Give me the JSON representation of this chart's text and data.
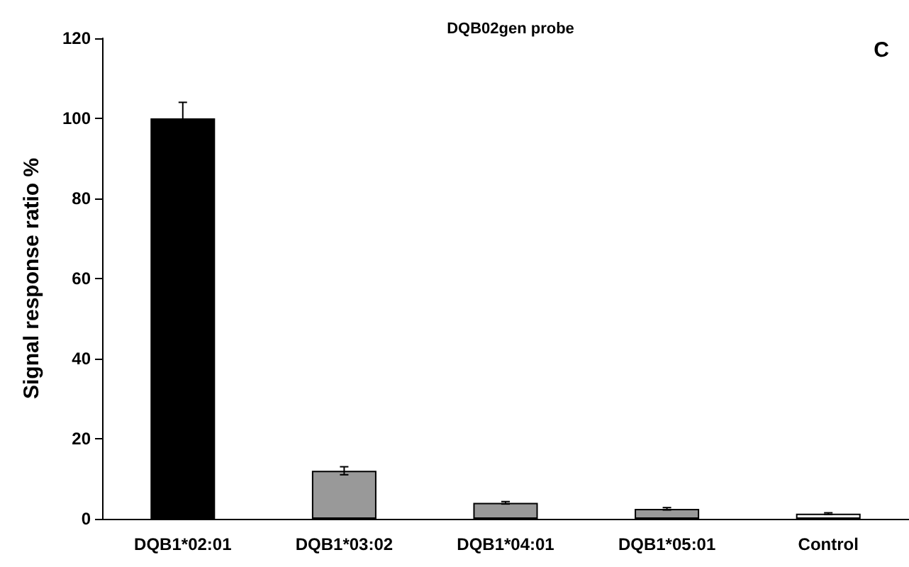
{
  "chart_data": {
    "type": "bar",
    "title": "DQB02gen probe",
    "ylabel": "Signal response ratio %",
    "categories": [
      "DQB1*02:01",
      "DQB1*03:02",
      "DQB1*04:01",
      "DQB1*05:01",
      "Control"
    ],
    "values": [
      100,
      12,
      4,
      2.5,
      1.3
    ],
    "errors": [
      4,
      1,
      0.3,
      0.3,
      0.2
    ],
    "colors": [
      "#000000",
      "#999999",
      "#999999",
      "#999999",
      "#ffffff"
    ],
    "ylim": [
      0,
      120
    ],
    "yticks": [
      0,
      20,
      40,
      60,
      80,
      100,
      120
    ],
    "grid": false,
    "annotations": [
      "C"
    ]
  }
}
